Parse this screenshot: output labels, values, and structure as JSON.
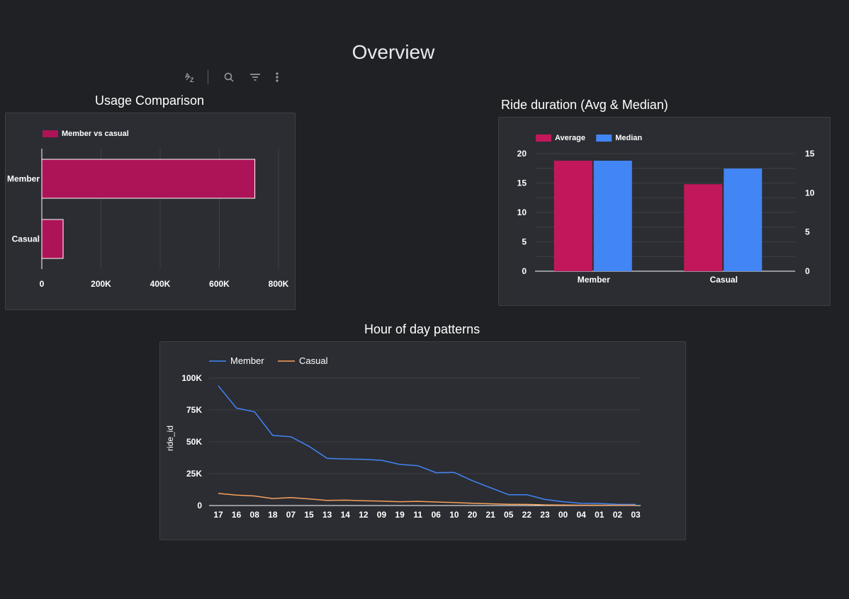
{
  "page": {
    "title": "Overview"
  },
  "toolbar": {
    "sort_icon": "sort-az-icon",
    "zoom_icon": "zoom-icon",
    "filter_icon": "filter-icon",
    "more_icon": "more-vert-icon"
  },
  "chart_data": [
    {
      "type": "bar",
      "orientation": "horizontal",
      "title": "Usage Comparison",
      "categories": [
        "Member",
        "Casual"
      ],
      "series": [
        {
          "name": "Member vs casual",
          "values": [
            720000,
            72000
          ],
          "color": "#ad1457"
        }
      ],
      "xlim": [
        0,
        800000
      ],
      "xticks": [
        "0",
        "200K",
        "400K",
        "600K",
        "800K"
      ],
      "grid": true,
      "legend": "top-left"
    },
    {
      "type": "bar",
      "title": "Ride duration (Avg & Median)",
      "categories": [
        "Member",
        "Casual"
      ],
      "series": [
        {
          "name": "Average",
          "values": [
            18.8,
            14.8
          ],
          "axis": "left",
          "color": "#c2185b"
        },
        {
          "name": "Median",
          "values": [
            14.1,
            13.1
          ],
          "axis": "right",
          "color": "#4285f4"
        }
      ],
      "ylim_left": [
        0,
        20
      ],
      "yticks_left": [
        "0",
        "5",
        "10",
        "15",
        "20"
      ],
      "ylim_right": [
        0,
        15
      ],
      "yticks_right": [
        "0",
        "5",
        "10",
        "15"
      ],
      "grid": true,
      "legend": "top-left"
    },
    {
      "type": "line",
      "title": "Hour of day patterns",
      "ylabel": "ride_id",
      "x": [
        "17",
        "16",
        "08",
        "18",
        "07",
        "15",
        "13",
        "14",
        "12",
        "09",
        "19",
        "11",
        "06",
        "10",
        "20",
        "21",
        "05",
        "22",
        "23",
        "00",
        "04",
        "01",
        "02",
        "03"
      ],
      "series": [
        {
          "name": "Member",
          "color": "#4285f4",
          "values": [
            94000,
            76500,
            73500,
            55000,
            54000,
            46500,
            37000,
            36500,
            36300,
            35500,
            32300,
            31300,
            25800,
            26000,
            19500,
            14000,
            8500,
            8500,
            4800,
            3000,
            1700,
            1600,
            1000,
            900
          ]
        },
        {
          "name": "Casual",
          "color": "#f6a15a",
          "values": [
            9500,
            8200,
            7500,
            5500,
            6200,
            5200,
            4000,
            4200,
            3800,
            3500,
            3000,
            3300,
            2800,
            2400,
            1800,
            1400,
            1000,
            900,
            500,
            400,
            300,
            300,
            200,
            200
          ]
        }
      ],
      "ylim": [
        0,
        100000
      ],
      "yticks": [
        "0",
        "25K",
        "50K",
        "75K",
        "100K"
      ],
      "grid": true,
      "legend": "top-left"
    }
  ]
}
